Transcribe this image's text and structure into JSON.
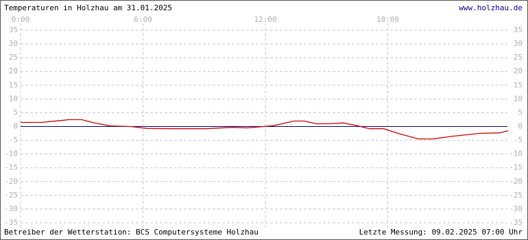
{
  "chart_data": {
    "type": "line",
    "title": "Temperaturen in Holzhau am 31.01.2025",
    "link": "www.holzhau.de",
    "footer_left": "Betreiber der Wetterstation: BCS Computersysteme Holzhau",
    "footer_right": "Letzte Messung: 09.02.2025 07:00 Uhr",
    "x": [
      0,
      1.0,
      2.0,
      2.35,
      3.0,
      3.5,
      4.4,
      5.4,
      6.2,
      7.4,
      9.1,
      10.4,
      11.1,
      12.4,
      13.4,
      13.9,
      14.5,
      15.1,
      15.8,
      16.5,
      17.1,
      17.8,
      18.5,
      19.5,
      20.2,
      21.2,
      22.5,
      23.5,
      23.9
    ],
    "values": [
      1.5,
      1.5,
      2.2,
      2.5,
      2.5,
      1.5,
      0.2,
      0,
      -0.7,
      -0.8,
      -0.8,
      -0.3,
      -0.5,
      0.3,
      2,
      2,
      1,
      1,
      1.3,
      0.3,
      -0.8,
      -0.8,
      -2.5,
      -4.5,
      -4.5,
      -3.5,
      -2.5,
      -2.3,
      -1.5
    ],
    "color": "#cc0000",
    "zero_line_color": "#000080",
    "xlim": [
      0,
      24
    ],
    "xticks": [
      {
        "value": 0,
        "label": "0:00"
      },
      {
        "value": 6,
        "label": "6:00"
      },
      {
        "value": 12,
        "label": "12:00"
      },
      {
        "value": 18,
        "label": "18:00"
      }
    ],
    "ylim": [
      -35,
      35
    ],
    "yticks": [
      -35,
      -30,
      -25,
      -20,
      -15,
      -10,
      -5,
      0,
      5,
      10,
      15,
      20,
      25,
      30,
      35
    ],
    "grid": true
  }
}
